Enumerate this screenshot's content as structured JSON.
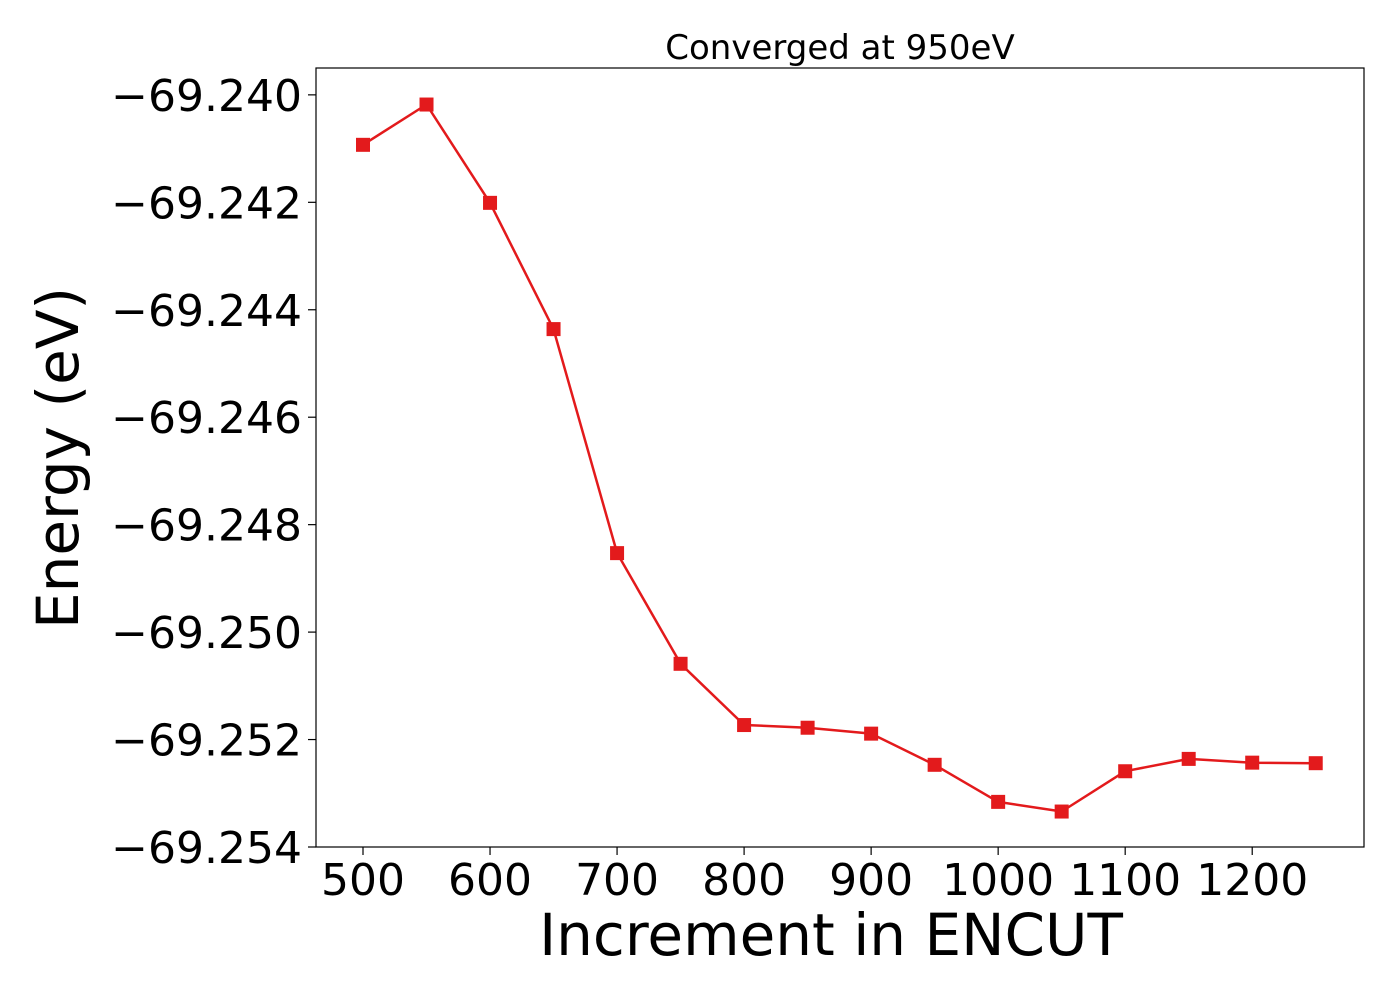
{
  "chart_data": {
    "type": "line",
    "title": "Converged at 950eV",
    "xlabel": "Increment in ENCUT",
    "ylabel": "Energy (eV)",
    "xlim": [
      463,
      1288
    ],
    "ylim": [
      -69.254,
      -69.2395
    ],
    "x_ticks": [
      500,
      600,
      700,
      800,
      900,
      1000,
      1100,
      1200
    ],
    "x_tick_labels": [
      "500",
      "600",
      "700",
      "800",
      "900",
      "1000",
      "1100",
      "1200"
    ],
    "y_ticks": [
      -69.24,
      -69.242,
      -69.244,
      -69.246,
      -69.248,
      -69.25,
      -69.252,
      -69.254
    ],
    "y_tick_labels": [
      "−69.240",
      "−69.242",
      "−69.244",
      "−69.246",
      "−69.248",
      "−69.250",
      "−69.252",
      "−69.254"
    ],
    "grid": false,
    "series": [
      {
        "color": "#e31a1c",
        "marker": "square",
        "x": [
          500,
          550,
          600,
          650,
          700,
          750,
          800,
          850,
          900,
          950,
          1000,
          1050,
          1100,
          1150,
          1200,
          1250
        ],
        "y": [
          -69.24093,
          -69.24018,
          -69.24201,
          -69.24436,
          -69.24853,
          -69.25059,
          -69.25173,
          -69.25178,
          -69.25189,
          -69.25247,
          -69.25316,
          -69.25334,
          -69.25259,
          -69.25236,
          -69.25243,
          -69.25244
        ]
      }
    ]
  }
}
